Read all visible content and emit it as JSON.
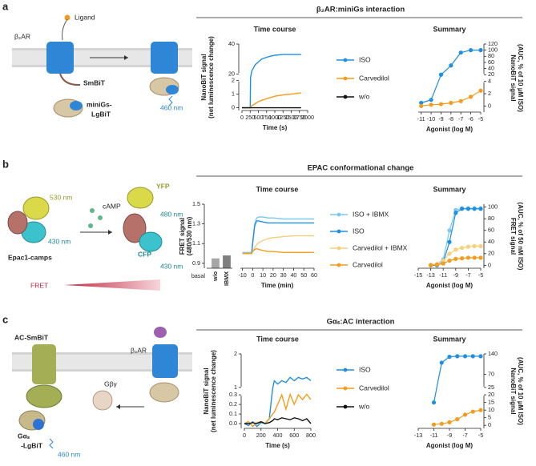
{
  "panels": [
    {
      "letter": "a",
      "title": "β₂AR:miniGs interaction",
      "labels": [
        "Ligand",
        "β₂AR",
        "SmBiT",
        "miniGs-",
        "LgBiT",
        "460 nm"
      ]
    },
    {
      "letter": "b",
      "title": "EPAC conformational change",
      "labels": [
        "530 nm",
        "cAMP",
        "430 nm",
        "Epac1-camps",
        "YFP",
        "480 nm",
        "CFP",
        "430 nm",
        "FRET"
      ]
    },
    {
      "letter": "c",
      "title": "Gαₛ:AC interaction",
      "labels": [
        "AC-SmBiT",
        "β₂AR",
        "Gβγ",
        "Gαₛ",
        "-LgBiT",
        "460 nm"
      ]
    }
  ],
  "chart_data": [
    {
      "type": "line",
      "title": "Time course",
      "xlabel": "Time (s)",
      "ylabel": [
        "NanoBiT signal",
        "(net luminescence change)"
      ],
      "x": [
        0,
        100,
        200,
        250,
        260,
        300,
        400,
        500,
        600,
        800,
        1000,
        1250,
        1500,
        1800
      ],
      "series": [
        {
          "name": "ISO",
          "color": "#1f8fe0",
          "values": [
            0,
            0,
            0,
            0,
            10,
            22,
            26,
            28,
            30,
            31.5,
            32.5,
            33,
            33,
            33
          ]
        },
        {
          "name": "Carvedilol",
          "color": "#f39c1e",
          "values": [
            0,
            0,
            0,
            0,
            0.05,
            0.15,
            0.3,
            0.45,
            0.55,
            0.7,
            0.85,
            0.95,
            1.0,
            1.1
          ]
        },
        {
          "name": "w/o",
          "color": "#111111",
          "values": [
            0,
            0,
            0,
            0,
            0,
            0,
            0,
            0,
            0,
            0,
            0,
            0,
            0,
            0
          ]
        }
      ],
      "xlim": [
        0,
        2000
      ],
      "xticks": [
        0,
        250,
        500,
        750,
        1000,
        1250,
        1500,
        1750,
        2000
      ],
      "ylim": [
        -0.2,
        40
      ],
      "ybreak": [
        2,
        20
      ],
      "yticks": [
        0,
        1,
        2,
        20,
        40
      ]
    },
    {
      "type": "scatter",
      "title": "Summary",
      "xlabel": "Agonist (log M)",
      "ylabel": [
        "NanoBiT signal",
        "(AUC, % of 10 μM ISO)"
      ],
      "x": [
        -11,
        -10,
        -9,
        -8,
        -7,
        -6,
        -5
      ],
      "series": [
        {
          "color": "#1f8fe0",
          "values": [
            0.5,
            1,
            20,
            50,
            92,
            100,
            100
          ]
        },
        {
          "color": "#f39c1e",
          "values": [
            0,
            0.2,
            0.3,
            0.5,
            0.8,
            1.5,
            2.5
          ]
        }
      ],
      "xlim": [
        -11.3,
        -5
      ],
      "xticks": [
        -11,
        -10,
        -9,
        -8,
        -7,
        -6,
        -5
      ],
      "ylim": [
        -1,
        120
      ],
      "ybreak": [
        4,
        20
      ],
      "yticks": [
        0,
        2,
        4,
        20,
        40,
        60,
        80,
        100,
        120
      ]
    },
    {
      "type": "bar",
      "xlabel": "basal",
      "categories": [
        "w/o",
        "IBMX"
      ],
      "values": [
        0.95,
        0.98
      ],
      "colors": [
        "#a6a6a6",
        "#7f7f7f"
      ],
      "ylim": [
        0.85,
        1.5
      ]
    },
    {
      "type": "line",
      "title": "Time course",
      "xlabel": "Time (min)",
      "ylabel": [
        "FRET signal",
        "(480/530 nm)"
      ],
      "x": [
        -10,
        -5,
        -1,
        0,
        2,
        4,
        6,
        10,
        15,
        20,
        30,
        40,
        50,
        60
      ],
      "series": [
        {
          "name": "ISO + IBMX",
          "color": "#7cc8f0",
          "values": [
            1.01,
            1.01,
            1.01,
            1.1,
            1.3,
            1.36,
            1.37,
            1.37,
            1.36,
            1.36,
            1.35,
            1.35,
            1.35,
            1.35
          ]
        },
        {
          "name": "ISO",
          "color": "#1f8fe0",
          "values": [
            1.0,
            1.0,
            1.0,
            1.1,
            1.28,
            1.33,
            1.33,
            1.32,
            1.31,
            1.31,
            1.31,
            1.31,
            1.31,
            1.31
          ]
        },
        {
          "name": "Carvedilol + IBMX",
          "color": "#f9cf7a",
          "values": [
            1.0,
            1.0,
            1.0,
            1.02,
            1.06,
            1.09,
            1.11,
            1.13,
            1.15,
            1.16,
            1.17,
            1.18,
            1.18,
            1.18
          ]
        },
        {
          "name": "Carvedilol",
          "color": "#f39c1e",
          "values": [
            1.0,
            1.0,
            1.0,
            1.02,
            1.04,
            1.05,
            1.04,
            1.03,
            1.02,
            1.02,
            1.01,
            1.01,
            1.01,
            1.01
          ]
        }
      ],
      "xlim": [
        -12,
        60
      ],
      "xticks": [
        -10,
        0,
        10,
        20,
        30,
        40,
        50,
        60
      ],
      "ylim": [
        0.85,
        1.5
      ],
      "yticks": [
        0.9,
        1.1,
        1.3,
        1.5
      ]
    },
    {
      "type": "scatter",
      "title": "Summary",
      "xlabel": "Agonist (log M)",
      "ylabel": [
        "FRET signal",
        "(AUC, % of 50 nM ISO)"
      ],
      "x": [
        -13,
        -12,
        -11,
        -10,
        -9,
        -8,
        -7,
        -6,
        -5
      ],
      "series": [
        {
          "color": "#7cc8f0",
          "values": [
            1,
            2,
            10,
            60,
            95,
            98,
            98,
            98,
            98
          ]
        },
        {
          "color": "#1f8fe0",
          "values": [
            0,
            0,
            5,
            40,
            90,
            97,
            97,
            97,
            97
          ]
        },
        {
          "color": "#f9cf7a",
          "values": [
            1,
            2,
            8,
            20,
            27,
            30,
            32,
            33,
            33
          ]
        },
        {
          "color": "#f39c1e",
          "values": [
            0,
            1,
            3,
            8,
            11,
            12,
            13,
            13,
            13
          ]
        }
      ],
      "xlim": [
        -15,
        -5
      ],
      "xticks": [
        -15,
        -13,
        -11,
        -9,
        -7,
        -5
      ],
      "ylim": [
        -5,
        105
      ],
      "yticks": [
        0,
        20,
        40,
        60,
        80,
        100
      ]
    },
    {
      "type": "line",
      "title": "Time course",
      "xlabel": "Time (s)",
      "ylabel": [
        "NanoBiT signal",
        "(net luminescence change)"
      ],
      "x": [
        0,
        50,
        100,
        150,
        200,
        250,
        300,
        340,
        360,
        400,
        450,
        500,
        550,
        600,
        650,
        700,
        750,
        800
      ],
      "series": [
        {
          "name": "ISO",
          "color": "#1f8fe0",
          "values": [
            0,
            -0.02,
            0.02,
            -0.03,
            0.01,
            0,
            0.05,
            0.9,
            1.2,
            1.1,
            1.2,
            1.15,
            1.3,
            1.2,
            1.3,
            1.25,
            1.3,
            1.2
          ]
        },
        {
          "name": "Carvedilol",
          "color": "#f39c1e",
          "values": [
            0,
            0.02,
            -0.03,
            0.01,
            0.02,
            0,
            0.05,
            0.1,
            0.12,
            0.2,
            0.3,
            0.15,
            0.35,
            0.2,
            0.3,
            0.25,
            0.35,
            0.25
          ]
        },
        {
          "name": "w/o",
          "color": "#111111",
          "values": [
            0,
            0,
            0.01,
            0,
            0.02,
            0,
            0.01,
            0.03,
            0.05,
            0.04,
            0.06,
            0.05,
            0.04,
            0.06,
            0.05,
            0.03,
            0.05,
            0
          ]
        }
      ],
      "xlim": [
        0,
        800
      ],
      "xticks": [
        0,
        200,
        400,
        600,
        800
      ],
      "ylim": [
        -0.05,
        2
      ],
      "ybreak": [
        0.3,
        1
      ],
      "yticks": [
        {
          "value": 0,
          "label": "0.0"
        },
        0.1,
        0.2,
        0.3,
        1,
        2
      ]
    },
    {
      "type": "scatter",
      "title": "Summary",
      "xlabel": "Agonist (log M)",
      "ylabel": [
        "NanoBiT signal",
        "(AUC, % of 10 μM ISO)"
      ],
      "x": [
        -11,
        -10,
        -9,
        -8,
        -7,
        -6,
        -5
      ],
      "series": [
        {
          "color": "#1f8fe0",
          "values": [
            15,
            110,
            130,
            132,
            132,
            132,
            132
          ]
        },
        {
          "color": "#f39c1e",
          "values": [
            0.5,
            1,
            2,
            4,
            7,
            9,
            10
          ]
        }
      ],
      "xlim": [
        -13,
        -5
      ],
      "xticks": [
        -13,
        -11,
        -9,
        -7,
        -5
      ],
      "ylim": [
        -2,
        140
      ],
      "ybreak": [
        20,
        25
      ],
      "yticks": [
        0,
        5,
        10,
        15,
        20,
        25,
        70,
        140
      ]
    }
  ]
}
